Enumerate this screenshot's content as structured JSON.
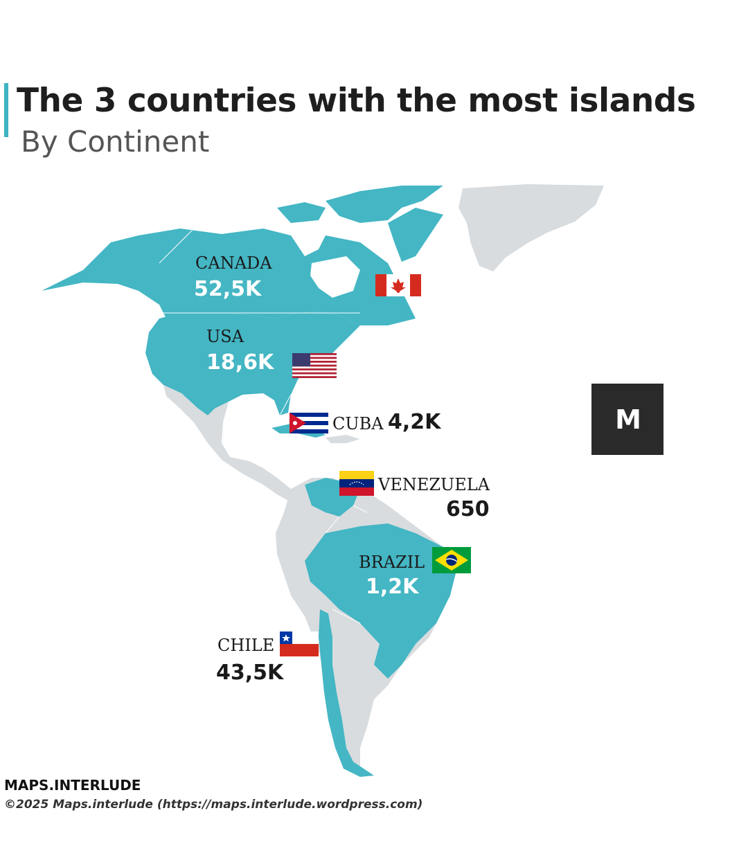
{
  "header": {
    "title": "The 3 countries with the most islands",
    "subtitle": "By Continent"
  },
  "colors": {
    "highlight": "#44b6c4",
    "other_land": "#d8dcdf",
    "accent_bar": "#3fb3c3",
    "logo_bg": "#2a2a2a"
  },
  "countries": [
    {
      "name": "CANADA",
      "islands": "52,5K",
      "flag": "canada-flag"
    },
    {
      "name": "USA",
      "islands": "18,6K",
      "flag": "usa-flag"
    },
    {
      "name": "CUBA",
      "islands": "4,2K",
      "flag": "cuba-flag"
    },
    {
      "name": "VENEZUELA",
      "islands": "650",
      "flag": "venezuela-flag"
    },
    {
      "name": "BRAZIL",
      "islands": "1,2K",
      "flag": "brazil-flag"
    },
    {
      "name": "CHILE",
      "islands": "43,5K",
      "flag": "chile-flag"
    }
  ],
  "logo": {
    "icon": "m-logo-icon"
  },
  "footer": {
    "brand": "MAPS.INTERLUDE",
    "copyright": "©2025 Maps.interlude (https://maps.interlude.wordpress.com)"
  }
}
